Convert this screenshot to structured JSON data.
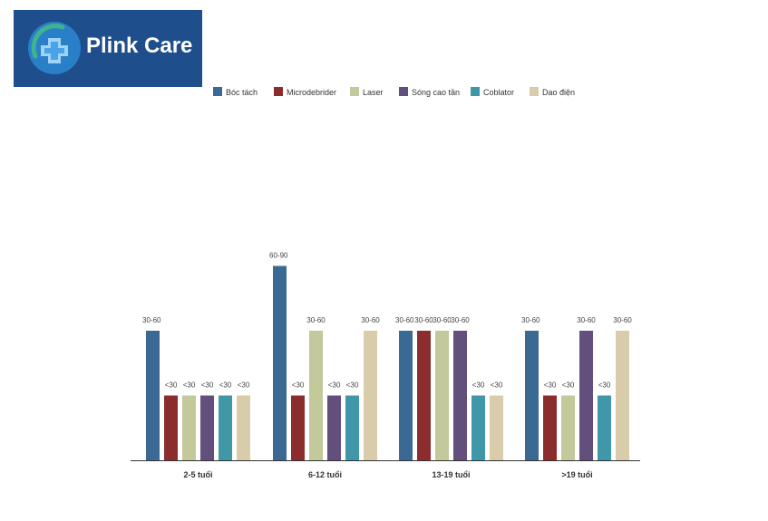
{
  "brand": {
    "name": "Plink Care",
    "logo_icon": "medical-cross-shield-icon"
  },
  "chart_data": {
    "type": "bar",
    "title": "",
    "xlabel": "",
    "ylabel": "",
    "value_scale": {
      "<30": 1,
      "30-60": 2,
      "60-90": 3
    },
    "ylim": [
      0,
      3
    ],
    "grid": false,
    "legend_position": "top",
    "categories": [
      "2-5 tuổi",
      "6-12 tuổi",
      "13-19 tuổi",
      ">19 tuổi"
    ],
    "series": [
      {
        "name": "Bóc tách",
        "color": "#3a6a93",
        "labels": [
          "30-60",
          "60-90",
          "30-60",
          "30-60"
        ]
      },
      {
        "name": "Microdebrider",
        "color": "#8c2d2d",
        "labels": [
          "<30",
          "<30",
          "30-60",
          "<30"
        ]
      },
      {
        "name": "Laser",
        "color": "#c3c99a",
        "labels": [
          "<30",
          "30-60",
          "30-60",
          "<30"
        ]
      },
      {
        "name": "Sóng cao tần",
        "color": "#624f7e",
        "labels": [
          "<30",
          "<30",
          "30-60",
          "30-60"
        ]
      },
      {
        "name": "Coblator",
        "color": "#4197aa",
        "labels": [
          "<30",
          "<30",
          "<30",
          "<30"
        ]
      },
      {
        "name": "Dao điện",
        "color": "#d8ccaa",
        "labels": [
          "<30",
          "30-60",
          "<30",
          "30-60"
        ]
      }
    ]
  }
}
